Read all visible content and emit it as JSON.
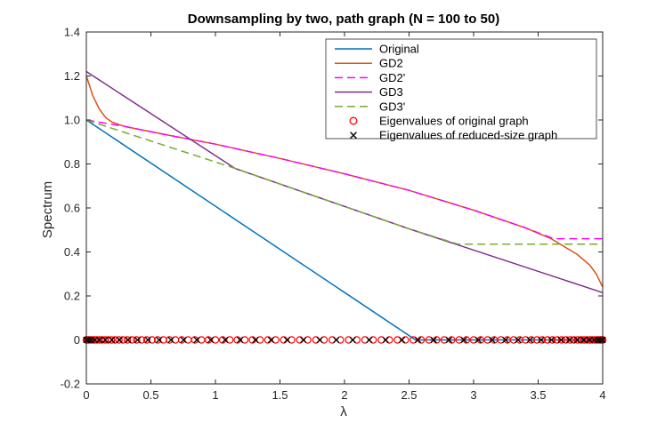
{
  "chart_data": {
    "type": "line",
    "title": "Downsampling by two, path graph (N = 100 to 50)",
    "xlabel": "λ",
    "ylabel": "Spectrum",
    "xlim": [
      0,
      4
    ],
    "ylim": [
      -0.2,
      1.4
    ],
    "xticks": [
      "0",
      "0.5",
      "1",
      "1.5",
      "2",
      "2.5",
      "3",
      "3.5",
      "4"
    ],
    "yticks": [
      "-0.2",
      "0",
      "0.2",
      "0.4",
      "0.6",
      "0.8",
      "1.0",
      "1.2",
      "1.4"
    ],
    "grid": false,
    "legend_position": "top-right",
    "series": [
      {
        "name": "Original",
        "color": "#0072bd",
        "style": "solid",
        "x": [
          0,
          2.55,
          4
        ],
        "y": [
          1.0,
          0.0,
          0.0
        ]
      },
      {
        "name": "GD2",
        "color": "#d95319",
        "style": "solid",
        "x": [
          0,
          0.05,
          0.1,
          0.15,
          0.2,
          0.3,
          0.6,
          1.0,
          1.5,
          2.0,
          2.5,
          3.0,
          3.4,
          3.6,
          3.8,
          3.9,
          3.95,
          4.0
        ],
        "y": [
          1.2,
          1.11,
          1.05,
          1.01,
          0.99,
          0.97,
          0.935,
          0.89,
          0.825,
          0.755,
          0.68,
          0.59,
          0.51,
          0.46,
          0.39,
          0.34,
          0.3,
          0.24
        ]
      },
      {
        "name": "GD2'",
        "color": "#ff00ff",
        "style": "dashed",
        "x": [
          0,
          0.3,
          0.6,
          1.0,
          1.5,
          2.0,
          2.5,
          3.0,
          3.4,
          3.62,
          4.0
        ],
        "y": [
          1.0,
          0.97,
          0.935,
          0.89,
          0.825,
          0.755,
          0.68,
          0.59,
          0.51,
          0.46,
          0.46
        ]
      },
      {
        "name": "GD3",
        "color": "#7e2f8e",
        "style": "solid",
        "x": [
          0,
          1.15,
          2.5,
          4.0
        ],
        "y": [
          1.22,
          0.78,
          0.505,
          0.215
        ]
      },
      {
        "name": "GD3'",
        "color": "#77ac30",
        "style": "dashed",
        "x": [
          0,
          1.15,
          2.5,
          2.88,
          4.0
        ],
        "y": [
          1.0,
          0.78,
          0.505,
          0.435,
          0.435
        ]
      },
      {
        "name": "Eigenvalues of original graph",
        "color": "#ff0000",
        "style": "marker-o",
        "y": 0,
        "count": 100
      },
      {
        "name": "Eigenvalues of reduced-size graph",
        "color": "#000000",
        "style": "marker-x",
        "y": 0,
        "count": 50
      }
    ]
  }
}
